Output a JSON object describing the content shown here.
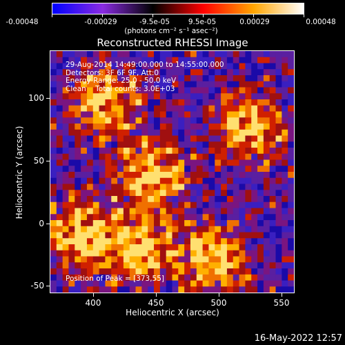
{
  "colorbar": {
    "labels": [
      "-0.00048",
      "-0.00029",
      "-9.5e-05",
      "9.5e-05",
      "0.00029",
      "0.00048"
    ],
    "unit": "(photons cm⁻² s⁻¹ asec⁻²)",
    "colors": [
      "#0000ff",
      "#8a2be2",
      "#000000",
      "#ff0000",
      "#ffa500",
      "#ffffff"
    ]
  },
  "chart_data": {
    "type": "heatmap",
    "title": "Reconstructed RHESSI Image",
    "xlabel": "Heliocentric X (arcsec)",
    "ylabel": "Heliocentric Y (arcsec)",
    "xlim": [
      365,
      555
    ],
    "ylim": [
      -52,
      128
    ],
    "x_ticks": [
      "400",
      "450",
      "500",
      "550"
    ],
    "y_ticks": [
      "100",
      "50",
      "0",
      "-50"
    ],
    "zlim": [
      -0.00048,
      0.00048
    ],
    "peak": [
      373,
      55
    ]
  },
  "annotations": {
    "line1": "29-Aug-2014 14:49:00.000 to 14:55:00.000",
    "line2": "Detectors: 3F 6F 9F, Att:0",
    "line3": "Energy Range: 25.0 - 50.0 keV",
    "line4": "Clean    Total counts: 3.0E+03",
    "peak": "Position of Peak = [373,55]"
  },
  "footer": {
    "timestamp": "16-May-2022 12:57"
  }
}
